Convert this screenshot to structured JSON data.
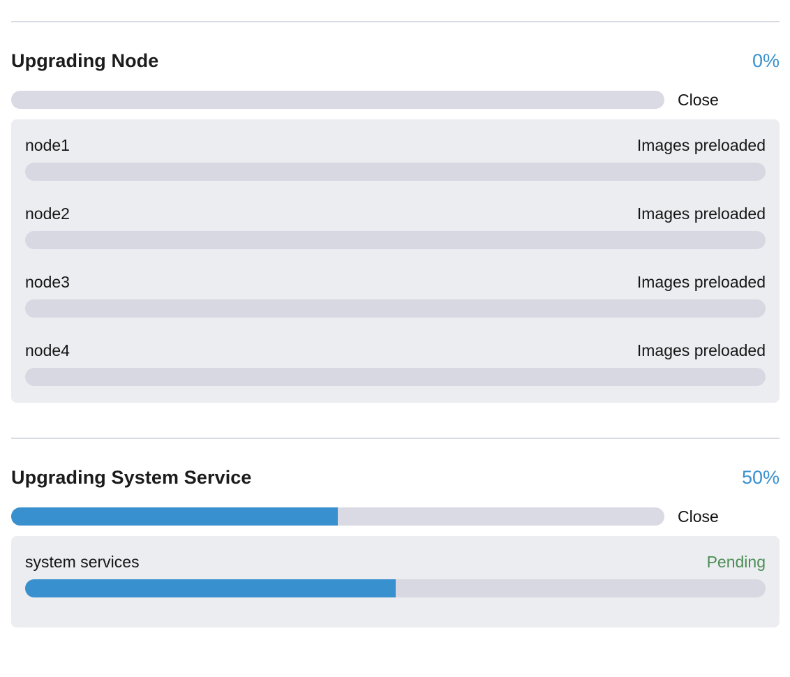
{
  "colors": {
    "accent_blue": "#3990ce",
    "success_green": "#4b8d52",
    "neutral_text": "#151515",
    "track_gray": "#d9dae3",
    "panel_bg": "#ecedf1",
    "divider": "#d8dbe4"
  },
  "sections": [
    {
      "title": "Upgrading Node",
      "percent_label": "0%",
      "percent_value": 0,
      "close_label": "Close",
      "items": [
        {
          "name": "node1",
          "status": "Images preloaded",
          "progress": 0,
          "status_color": "#151515"
        },
        {
          "name": "node2",
          "status": "Images preloaded",
          "progress": 0,
          "status_color": "#151515"
        },
        {
          "name": "node3",
          "status": "Images preloaded",
          "progress": 0,
          "status_color": "#151515"
        },
        {
          "name": "node4",
          "status": "Images preloaded",
          "progress": 0,
          "status_color": "#151515"
        }
      ]
    },
    {
      "title": "Upgrading System Service",
      "percent_label": "50%",
      "percent_value": 50,
      "close_label": "Close",
      "items": [
        {
          "name": "system services",
          "status": "Pending",
          "progress": 50,
          "status_color": "#4b8d52"
        }
      ]
    }
  ]
}
